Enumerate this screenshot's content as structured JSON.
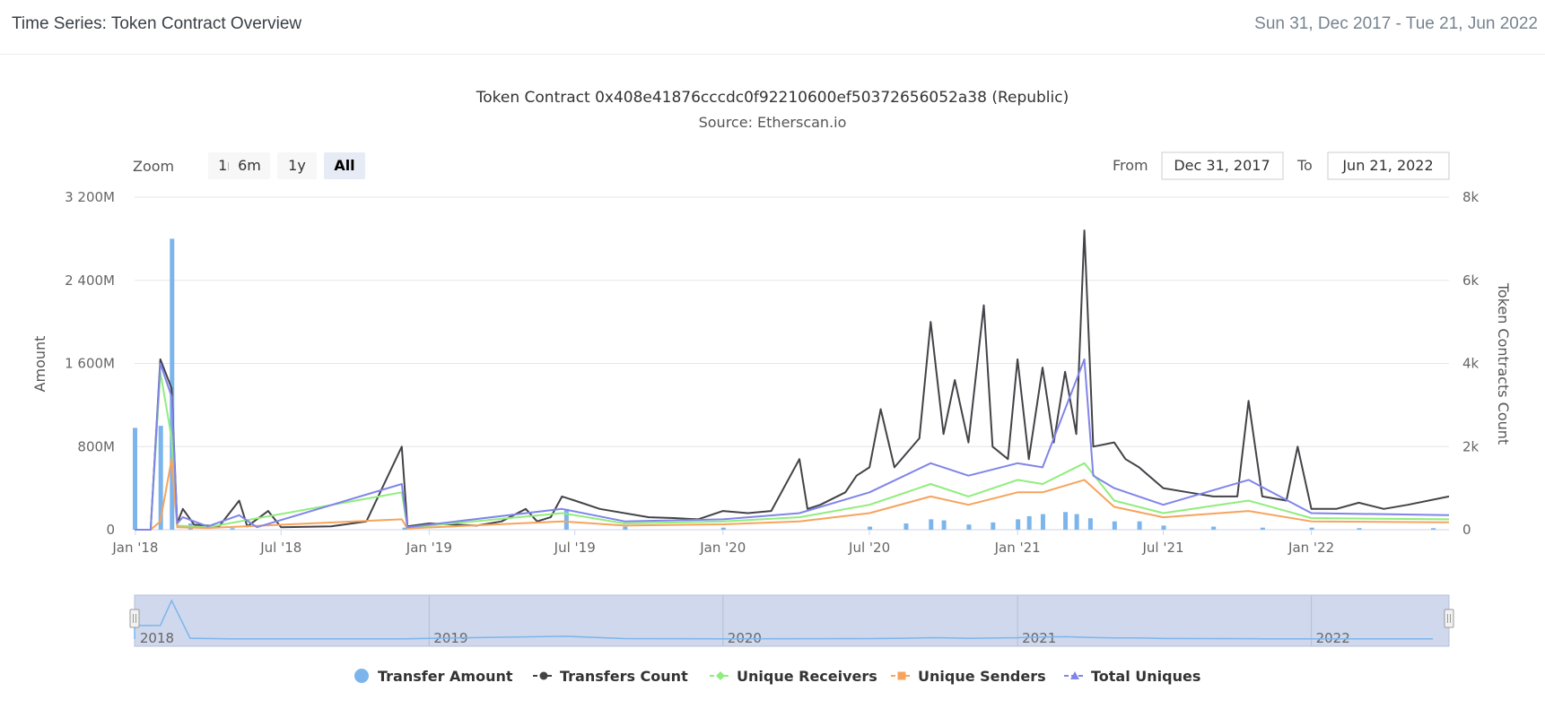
{
  "header": {
    "title": "Time Series: Token Contract Overview",
    "date_range": "Sun 31, Dec 2017 - Tue 21, Jun 2022"
  },
  "zoom": {
    "label": "Zoom",
    "buttons": [
      "1m",
      "6m",
      "1y",
      "All"
    ],
    "active": "All"
  },
  "range": {
    "from_label": "From",
    "from_value": "Dec 31, 2017",
    "to_label": "To",
    "to_value": "Jun 21, 2022"
  },
  "navigator": {
    "year_labels": [
      "2018",
      "2019",
      "2020",
      "2021",
      "2022"
    ]
  },
  "colors": {
    "transfer_amount": "#7cb5ec",
    "transfers_count": "#434348",
    "unique_receivers": "#90ed7d",
    "unique_senders": "#f7a35c",
    "total_uniques": "#8085e9"
  },
  "chart_data": {
    "type": "line",
    "title": "Token Contract 0x408e41876cccdc0f92210600ef50372656052a38 (Republic)",
    "subtitle": "Source: Etherscan.io",
    "x_axis": {
      "type": "datetime",
      "range": [
        "2017-12-31",
        "2022-06-21"
      ],
      "tick_labels": [
        "Jan '18",
        "Jul '18",
        "Jan '19",
        "Jul '19",
        "Jan '20",
        "Jul '20",
        "Jan '21",
        "Jul '21",
        "Jan '22"
      ]
    },
    "y_axis_left": {
      "title": "Amount",
      "range": [
        0,
        3200000000
      ],
      "tick_labels": [
        "0",
        "800M",
        "1 600M",
        "2 400M",
        "3 200M"
      ]
    },
    "y_axis_right": {
      "title": "Token Contracts Count",
      "range": [
        0,
        8000
      ],
      "tick_labels": [
        "0",
        "2k",
        "4k",
        "6k",
        "8k"
      ]
    },
    "grid": true,
    "legend_position": "bottom-center",
    "series": [
      {
        "name": "Transfer Amount",
        "type": "column",
        "axis": "left",
        "points": [
          [
            "2017-12-31",
            980000000
          ],
          [
            "2018-02-01",
            1000000000
          ],
          [
            "2018-02-15",
            2800000000
          ],
          [
            "2018-03-10",
            60000000
          ],
          [
            "2018-05-01",
            15000000
          ],
          [
            "2018-12-01",
            20000000
          ],
          [
            "2019-06-20",
            200000000
          ],
          [
            "2019-09-01",
            30000000
          ],
          [
            "2020-01-01",
            20000000
          ],
          [
            "2020-07-01",
            30000000
          ],
          [
            "2020-08-15",
            60000000
          ],
          [
            "2020-09-15",
            100000000
          ],
          [
            "2020-10-01",
            90000000
          ],
          [
            "2020-11-01",
            50000000
          ],
          [
            "2020-12-01",
            70000000
          ],
          [
            "2021-01-01",
            100000000
          ],
          [
            "2021-01-15",
            130000000
          ],
          [
            "2021-02-01",
            150000000
          ],
          [
            "2021-03-01",
            170000000
          ],
          [
            "2021-03-15",
            150000000
          ],
          [
            "2021-04-01",
            110000000
          ],
          [
            "2021-05-01",
            80000000
          ],
          [
            "2021-06-01",
            80000000
          ],
          [
            "2021-07-01",
            40000000
          ],
          [
            "2021-09-01",
            30000000
          ],
          [
            "2021-11-01",
            20000000
          ],
          [
            "2022-01-01",
            20000000
          ],
          [
            "2022-03-01",
            15000000
          ],
          [
            "2022-06-01",
            15000000
          ]
        ]
      },
      {
        "name": "Transfers Count",
        "type": "line",
        "axis": "right",
        "points": [
          [
            "2017-12-31",
            0
          ],
          [
            "2018-01-20",
            0
          ],
          [
            "2018-02-01",
            4100
          ],
          [
            "2018-02-15",
            3400
          ],
          [
            "2018-02-22",
            150
          ],
          [
            "2018-03-01",
            500
          ],
          [
            "2018-03-15",
            120
          ],
          [
            "2018-04-15",
            80
          ],
          [
            "2018-05-10",
            700
          ],
          [
            "2018-05-20",
            80
          ],
          [
            "2018-06-15",
            450
          ],
          [
            "2018-07-01",
            60
          ],
          [
            "2018-09-01",
            80
          ],
          [
            "2018-10-15",
            200
          ],
          [
            "2018-11-28",
            2000
          ],
          [
            "2018-12-05",
            80
          ],
          [
            "2019-01-01",
            150
          ],
          [
            "2019-03-01",
            100
          ],
          [
            "2019-04-01",
            200
          ],
          [
            "2019-05-01",
            500
          ],
          [
            "2019-05-15",
            200
          ],
          [
            "2019-06-01",
            300
          ],
          [
            "2019-06-15",
            800
          ],
          [
            "2019-07-01",
            700
          ],
          [
            "2019-08-01",
            500
          ],
          [
            "2019-10-01",
            300
          ],
          [
            "2019-11-01",
            280
          ],
          [
            "2019-12-01",
            250
          ],
          [
            "2020-01-01",
            450
          ],
          [
            "2020-02-01",
            400
          ],
          [
            "2020-03-01",
            450
          ],
          [
            "2020-04-05",
            1700
          ],
          [
            "2020-04-15",
            500
          ],
          [
            "2020-05-01",
            600
          ],
          [
            "2020-06-01",
            900
          ],
          [
            "2020-06-15",
            1300
          ],
          [
            "2020-07-01",
            1500
          ],
          [
            "2020-07-15",
            2900
          ],
          [
            "2020-08-01",
            1500
          ],
          [
            "2020-09-01",
            2200
          ],
          [
            "2020-09-15",
            5000
          ],
          [
            "2020-10-01",
            2300
          ],
          [
            "2020-10-15",
            3600
          ],
          [
            "2020-11-01",
            2100
          ],
          [
            "2020-11-20",
            5400
          ],
          [
            "2020-12-01",
            2000
          ],
          [
            "2020-12-20",
            1700
          ],
          [
            "2021-01-01",
            4100
          ],
          [
            "2021-01-15",
            1700
          ],
          [
            "2021-02-01",
            3900
          ],
          [
            "2021-02-15",
            2100
          ],
          [
            "2021-03-01",
            3800
          ],
          [
            "2021-03-15",
            2300
          ],
          [
            "2021-03-25",
            7200
          ],
          [
            "2021-04-05",
            2000
          ],
          [
            "2021-05-01",
            2100
          ],
          [
            "2021-05-15",
            1700
          ],
          [
            "2021-06-01",
            1500
          ],
          [
            "2021-07-01",
            1000
          ],
          [
            "2021-08-01",
            900
          ],
          [
            "2021-09-01",
            800
          ],
          [
            "2021-10-01",
            800
          ],
          [
            "2021-10-15",
            3100
          ],
          [
            "2021-11-01",
            800
          ],
          [
            "2021-12-01",
            700
          ],
          [
            "2021-12-15",
            2000
          ],
          [
            "2022-01-01",
            500
          ],
          [
            "2022-02-01",
            500
          ],
          [
            "2022-03-01",
            650
          ],
          [
            "2022-04-01",
            500
          ],
          [
            "2022-05-01",
            600
          ],
          [
            "2022-06-21",
            800
          ]
        ]
      },
      {
        "name": "Unique Receivers",
        "type": "line",
        "axis": "right",
        "points": [
          [
            "2017-12-31",
            0
          ],
          [
            "2018-01-20",
            0
          ],
          [
            "2018-02-01",
            3800
          ],
          [
            "2018-02-15",
            2200
          ],
          [
            "2018-02-22",
            100
          ],
          [
            "2018-04-01",
            60
          ],
          [
            "2018-11-28",
            900
          ],
          [
            "2018-12-05",
            50
          ],
          [
            "2019-06-15",
            400
          ],
          [
            "2019-09-01",
            150
          ],
          [
            "2020-01-01",
            200
          ],
          [
            "2020-04-05",
            300
          ],
          [
            "2020-07-01",
            600
          ],
          [
            "2020-09-15",
            1100
          ],
          [
            "2020-11-01",
            800
          ],
          [
            "2021-01-01",
            1200
          ],
          [
            "2021-02-01",
            1100
          ],
          [
            "2021-03-25",
            1600
          ],
          [
            "2021-05-01",
            700
          ],
          [
            "2021-07-01",
            400
          ],
          [
            "2021-10-15",
            700
          ],
          [
            "2022-01-01",
            280
          ],
          [
            "2022-06-21",
            250
          ]
        ]
      },
      {
        "name": "Unique Senders",
        "type": "line",
        "axis": "right",
        "points": [
          [
            "2017-12-31",
            0
          ],
          [
            "2018-01-20",
            0
          ],
          [
            "2018-02-01",
            200
          ],
          [
            "2018-02-15",
            1700
          ],
          [
            "2018-02-22",
            60
          ],
          [
            "2018-04-01",
            40
          ],
          [
            "2018-11-28",
            250
          ],
          [
            "2018-12-05",
            30
          ],
          [
            "2019-06-15",
            200
          ],
          [
            "2019-09-01",
            100
          ],
          [
            "2020-01-01",
            130
          ],
          [
            "2020-04-05",
            200
          ],
          [
            "2020-07-01",
            400
          ],
          [
            "2020-09-15",
            800
          ],
          [
            "2020-11-01",
            600
          ],
          [
            "2021-01-01",
            900
          ],
          [
            "2021-02-01",
            900
          ],
          [
            "2021-03-25",
            1200
          ],
          [
            "2021-05-01",
            550
          ],
          [
            "2021-07-01",
            300
          ],
          [
            "2021-10-15",
            450
          ],
          [
            "2022-01-01",
            200
          ],
          [
            "2022-06-21",
            180
          ]
        ]
      },
      {
        "name": "Total Uniques",
        "type": "line",
        "axis": "right",
        "points": [
          [
            "2017-12-31",
            0
          ],
          [
            "2018-01-20",
            0
          ],
          [
            "2018-02-01",
            4000
          ],
          [
            "2018-02-15",
            3200
          ],
          [
            "2018-02-22",
            150
          ],
          [
            "2018-03-01",
            300
          ],
          [
            "2018-04-01",
            80
          ],
          [
            "2018-05-10",
            350
          ],
          [
            "2018-06-01",
            60
          ],
          [
            "2018-11-28",
            1100
          ],
          [
            "2018-12-05",
            60
          ],
          [
            "2019-06-15",
            500
          ],
          [
            "2019-09-01",
            200
          ],
          [
            "2020-01-01",
            250
          ],
          [
            "2020-04-05",
            400
          ],
          [
            "2020-07-01",
            900
          ],
          [
            "2020-09-15",
            1600
          ],
          [
            "2020-11-01",
            1300
          ],
          [
            "2021-01-01",
            1600
          ],
          [
            "2021-02-01",
            1500
          ],
          [
            "2021-03-25",
            4100
          ],
          [
            "2021-04-05",
            1300
          ],
          [
            "2021-05-01",
            1000
          ],
          [
            "2021-07-01",
            600
          ],
          [
            "2021-10-15",
            1200
          ],
          [
            "2022-01-01",
            400
          ],
          [
            "2022-06-21",
            350
          ]
        ]
      }
    ]
  }
}
